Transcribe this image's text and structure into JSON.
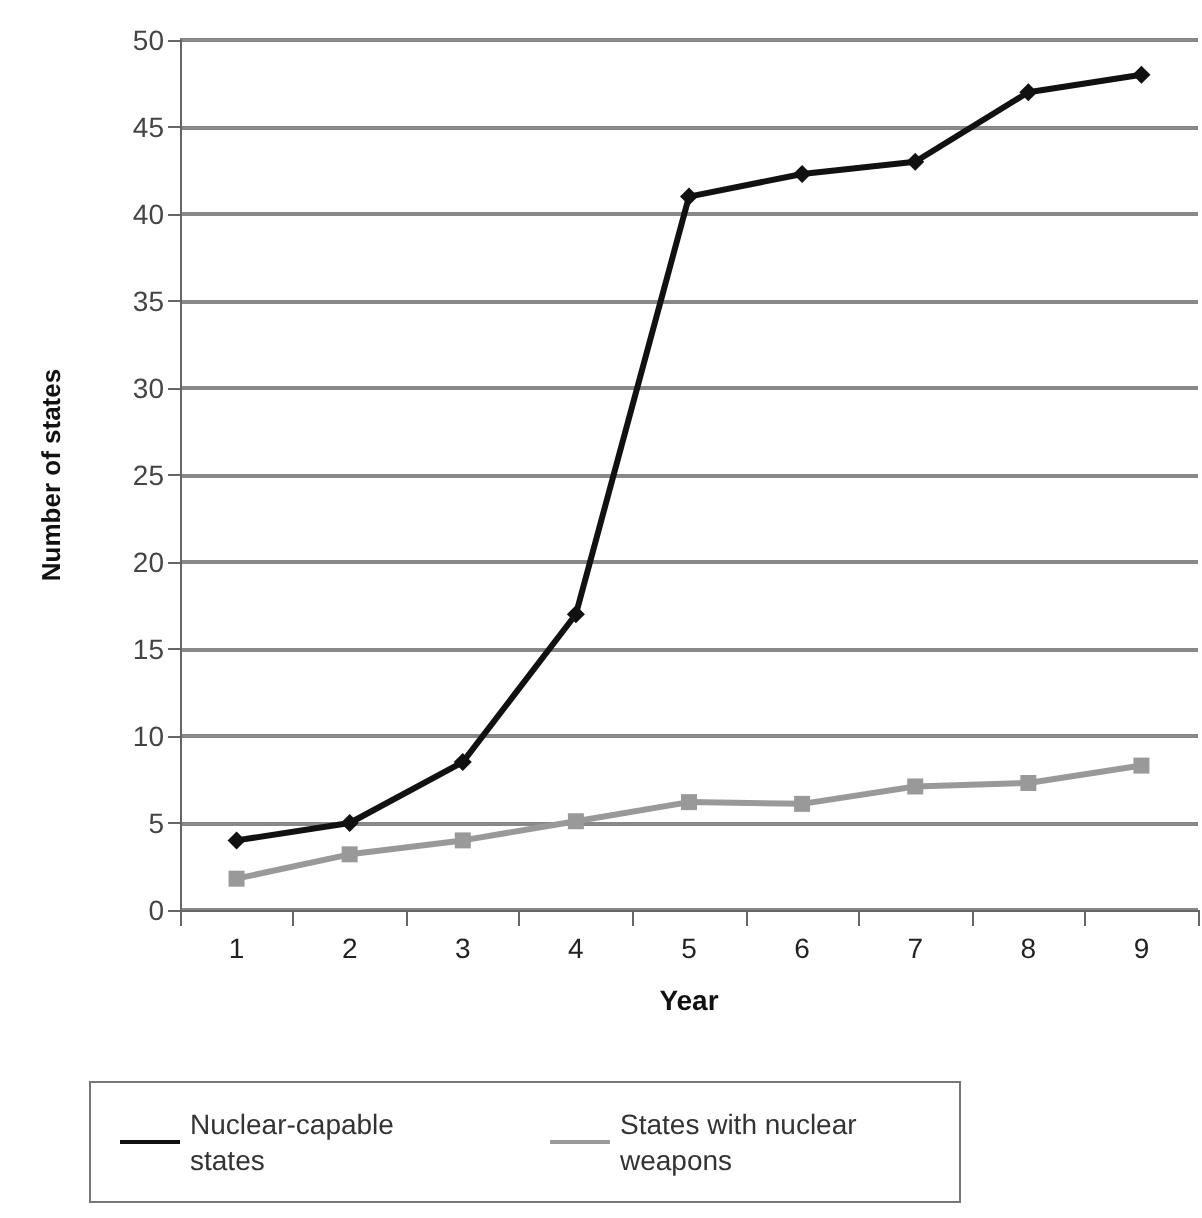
{
  "chart_data": {
    "type": "line",
    "xlabel": "Year",
    "ylabel": "Number of states",
    "categories": [
      "1",
      "2",
      "3",
      "4",
      "5",
      "6",
      "7",
      "8",
      "9"
    ],
    "series": [
      {
        "name": "Nuclear-capable states",
        "color": "#111111",
        "marker": "diamond",
        "values": [
          4,
          5,
          8.5,
          17,
          41,
          42.3,
          43,
          47,
          48
        ]
      },
      {
        "name": "States with nuclear weapons",
        "color": "#999999",
        "marker": "square",
        "values": [
          1.8,
          3.2,
          4,
          5.1,
          6.2,
          6.1,
          7.1,
          7.3,
          8.3
        ]
      }
    ],
    "ylim": [
      0,
      50
    ],
    "yticks": [
      0,
      5,
      10,
      15,
      20,
      25,
      30,
      35,
      40,
      45,
      50
    ],
    "grid": "y",
    "legend": "bottom",
    "line_style": "solid"
  }
}
